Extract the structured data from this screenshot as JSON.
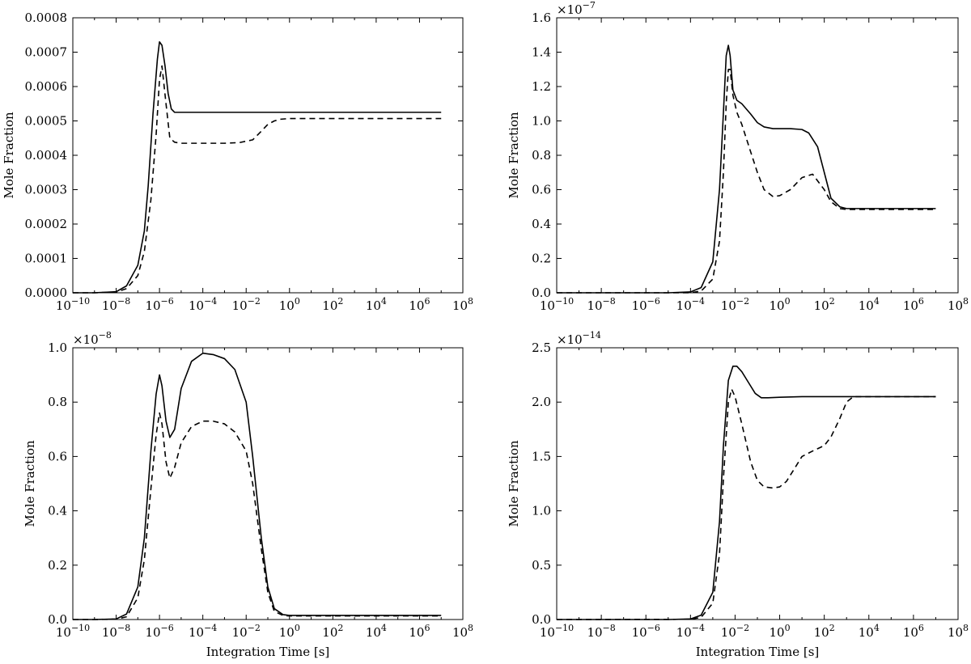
{
  "chart_data": [
    {
      "type": "line",
      "xscale": "log",
      "xlim": [
        1e-10,
        100000000.0
      ],
      "ylim": [
        0,
        0.0008
      ],
      "ylabel": "Mole Fraction",
      "xlabel": "",
      "multiplier": "",
      "xticks_exp": [
        "−10",
        "−8",
        "−6",
        "−4",
        "−2",
        "0",
        "2",
        "4",
        "6",
        "8"
      ],
      "yticks": [
        "0.0000",
        "0.0001",
        "0.0002",
        "0.0003",
        "0.0004",
        "0.0005",
        "0.0006",
        "0.0007",
        "0.0008"
      ],
      "series": [
        {
          "style": "solid",
          "x": [
            1e-10,
            1e-09,
            1e-08,
            3e-08,
            1e-07,
            2e-07,
            3e-07,
            5e-07,
            8e-07,
            1e-06,
            1.3e-06,
            1.8e-06,
            2.5e-06,
            3.5e-06,
            5e-06,
            1e-05,
            0.001,
            1,
            10000000.0
          ],
          "y": [
            0,
            0,
            3e-06,
            2e-05,
            8e-05,
            0.00018,
            0.00031,
            0.00052,
            0.00068,
            0.00073,
            0.00072,
            0.00066,
            0.00058,
            0.000535,
            0.000525,
            0.000525,
            0.000525,
            0.000525,
            0.000525
          ]
        },
        {
          "style": "dashed",
          "x": [
            1e-10,
            1e-09,
            1e-08,
            3e-08,
            1e-07,
            2e-07,
            4e-07,
            7e-07,
            1e-06,
            1.3e-06,
            2e-06,
            3e-06,
            5e-06,
            1e-05,
            0.0001,
            0.001,
            0.005,
            0.02,
            0.05,
            0.1,
            0.2,
            0.4,
            1,
            10000000.0
          ],
          "y": [
            0,
            0,
            2e-06,
            1.2e-05,
            5e-05,
            0.00012,
            0.00027,
            0.00046,
            0.00062,
            0.00066,
            0.00055,
            0.00045,
            0.000438,
            0.000435,
            0.000435,
            0.000435,
            0.000437,
            0.000445,
            0.00047,
            0.00049,
            0.0005,
            0.000505,
            0.000507,
            0.000507
          ]
        }
      ]
    },
    {
      "type": "line",
      "xscale": "log",
      "xlim": [
        1e-10,
        100000000.0
      ],
      "ylim": [
        0,
        1.6
      ],
      "ylabel": "Mole Fraction",
      "xlabel": "",
      "multiplier": "−7",
      "xticks_exp": [
        "−10",
        "−8",
        "−6",
        "−4",
        "−2",
        "0",
        "2",
        "4",
        "6",
        "8"
      ],
      "yticks": [
        "0.0",
        "0.2",
        "0.4",
        "0.6",
        "0.8",
        "1.0",
        "1.2",
        "1.4",
        "1.6"
      ],
      "series": [
        {
          "style": "solid",
          "x": [
            1e-10,
            1e-05,
            0.0001,
            0.0003,
            0.001,
            0.002,
            0.003,
            0.004,
            0.005,
            0.006,
            0.008,
            0.012,
            0.02,
            0.05,
            0.1,
            0.2,
            0.5,
            1,
            3,
            10,
            20,
            50,
            100,
            200,
            500,
            1000,
            10000000.0
          ],
          "y": [
            0,
            0,
            0.005,
            0.03,
            0.18,
            0.6,
            1.05,
            1.38,
            1.44,
            1.38,
            1.18,
            1.12,
            1.1,
            1.04,
            0.99,
            0.965,
            0.955,
            0.955,
            0.955,
            0.95,
            0.93,
            0.85,
            0.7,
            0.55,
            0.5,
            0.49,
            0.49
          ]
        },
        {
          "style": "dashed",
          "x": [
            1e-10,
            0.0001,
            0.0003,
            0.001,
            0.002,
            0.003,
            0.004,
            0.005,
            0.006,
            0.008,
            0.012,
            0.02,
            0.05,
            0.1,
            0.2,
            0.5,
            1,
            3,
            10,
            30,
            100,
            200,
            500,
            1000,
            10000000.0
          ],
          "y": [
            0,
            0,
            0.01,
            0.08,
            0.3,
            0.7,
            1.1,
            1.3,
            1.3,
            1.15,
            1.05,
            0.98,
            0.82,
            0.7,
            0.6,
            0.56,
            0.565,
            0.6,
            0.67,
            0.69,
            0.6,
            0.53,
            0.49,
            0.485,
            0.485
          ]
        }
      ]
    },
    {
      "type": "line",
      "xscale": "log",
      "xlim": [
        1e-10,
        100000000.0
      ],
      "ylim": [
        0,
        1.0
      ],
      "ylabel": "Mole Fraction",
      "xlabel": "Integration Time [s]",
      "multiplier": "−8",
      "xticks_exp": [
        "−10",
        "−8",
        "−6",
        "−4",
        "−2",
        "0",
        "2",
        "4",
        "6",
        "8"
      ],
      "yticks": [
        "0.0",
        "0.2",
        "0.4",
        "0.6",
        "0.8",
        "1.0"
      ],
      "series": [
        {
          "style": "solid",
          "x": [
            1e-10,
            1e-09,
            1e-08,
            3e-08,
            1e-07,
            2e-07,
            4e-07,
            7e-07,
            1e-06,
            1.3e-06,
            2e-06,
            3e-06,
            5e-06,
            1e-05,
            3e-05,
            0.0001,
            0.0003,
            0.001,
            0.003,
            0.01,
            0.02,
            0.05,
            0.1,
            0.2,
            0.5,
            1,
            10000000.0
          ],
          "y": [
            0,
            0,
            0.002,
            0.02,
            0.12,
            0.3,
            0.62,
            0.83,
            0.9,
            0.86,
            0.73,
            0.67,
            0.7,
            0.85,
            0.95,
            0.98,
            0.975,
            0.96,
            0.92,
            0.8,
            0.6,
            0.3,
            0.12,
            0.04,
            0.018,
            0.015,
            0.015
          ]
        },
        {
          "style": "dashed",
          "x": [
            1e-10,
            1e-09,
            1e-08,
            3e-08,
            1e-07,
            2e-07,
            4e-07,
            7e-07,
            1e-06,
            1.3e-06,
            2e-06,
            3e-06,
            5e-06,
            1e-05,
            3e-05,
            0.0001,
            0.0003,
            0.001,
            0.003,
            0.01,
            0.02,
            0.05,
            0.1,
            0.2,
            0.5,
            1,
            10000000.0
          ],
          "y": [
            0,
            0,
            0.001,
            0.01,
            0.08,
            0.22,
            0.48,
            0.68,
            0.76,
            0.72,
            0.58,
            0.52,
            0.56,
            0.65,
            0.71,
            0.73,
            0.73,
            0.72,
            0.69,
            0.62,
            0.5,
            0.26,
            0.1,
            0.03,
            0.015,
            0.013,
            0.013
          ]
        }
      ]
    },
    {
      "type": "line",
      "xscale": "log",
      "xlim": [
        1e-10,
        100000000.0
      ],
      "ylim": [
        0,
        2.5
      ],
      "ylabel": "Mole Fraction",
      "xlabel": "Integration Time [s]",
      "multiplier": "−14",
      "xticks_exp": [
        "−10",
        "−8",
        "−6",
        "−4",
        "−2",
        "0",
        "2",
        "4",
        "6",
        "8"
      ],
      "yticks": [
        "0.0",
        "0.5",
        "1.0",
        "1.5",
        "2.0",
        "2.5"
      ],
      "series": [
        {
          "style": "solid",
          "x": [
            1e-10,
            1e-05,
            0.0001,
            0.0003,
            0.001,
            0.002,
            0.003,
            0.005,
            0.008,
            0.012,
            0.02,
            0.04,
            0.08,
            0.15,
            0.3,
            1,
            10,
            100,
            10000000.0
          ],
          "y": [
            0,
            0,
            0.005,
            0.04,
            0.25,
            0.9,
            1.6,
            2.2,
            2.33,
            2.33,
            2.28,
            2.18,
            2.08,
            2.04,
            2.04,
            2.045,
            2.05,
            2.05,
            2.05
          ]
        },
        {
          "style": "dashed",
          "x": [
            1e-10,
            0.0001,
            0.0003,
            0.001,
            0.002,
            0.003,
            0.005,
            0.007,
            0.01,
            0.02,
            0.05,
            0.1,
            0.2,
            0.5,
            1,
            2,
            5,
            10,
            30,
            100,
            200,
            500,
            1000,
            2000,
            10000000.0
          ],
          "y": [
            0,
            0.002,
            0.02,
            0.15,
            0.6,
            1.3,
            2.0,
            2.12,
            2.05,
            1.8,
            1.45,
            1.28,
            1.22,
            1.21,
            1.22,
            1.27,
            1.4,
            1.5,
            1.55,
            1.6,
            1.68,
            1.85,
            2.0,
            2.05,
            2.05
          ]
        }
      ]
    }
  ]
}
